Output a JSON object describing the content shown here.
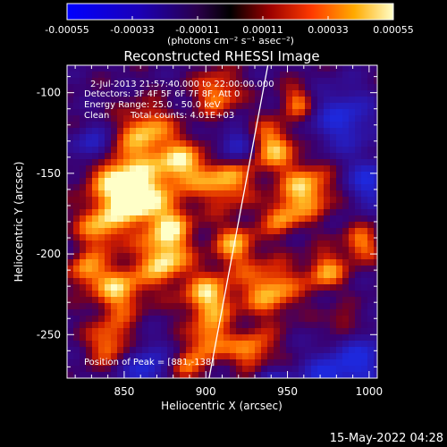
{
  "chart_data": {
    "type": "heatmap",
    "title": "Reconstructed RHESSI Image",
    "xlabel": "Heliocentric X (arcsec)",
    "ylabel": "Heliocentric Y (arcsec)",
    "xlim": [
      815,
      1005
    ],
    "ylim": [
      -277,
      -83
    ],
    "x_ticks": [
      850,
      900,
      950,
      1000
    ],
    "y_ticks": [
      -100,
      -150,
      -200,
      -250
    ],
    "colorbar": {
      "label": "(photons cm⁻² s⁻¹ asec⁻²)",
      "range": [
        -0.00055,
        0.00055
      ],
      "ticks": [
        "-0.00055",
        "-0.00033",
        "-0.00011",
        "0.00011",
        "0.00033",
        "0.00055"
      ]
    },
    "annotations": {
      "time": "2-Jul-2013 21:57:40.000 to 22:00:00.000",
      "detectors": "Detectors: 3F 4F 5F 6F 7F 8F, Att 0",
      "energy": "Energy Range: 25.0 - 50.0 keV",
      "method": "Clean",
      "counts": "Total counts: 4.01E+03",
      "peak": "Position of Peak = [881,-138]"
    },
    "peak": {
      "x": 881,
      "y": -138
    },
    "limb_line": [
      [
        902,
        -277
      ],
      [
        938,
        -83
      ]
    ]
  },
  "footer": {
    "timestamp": "15-May-2022 04:28"
  }
}
